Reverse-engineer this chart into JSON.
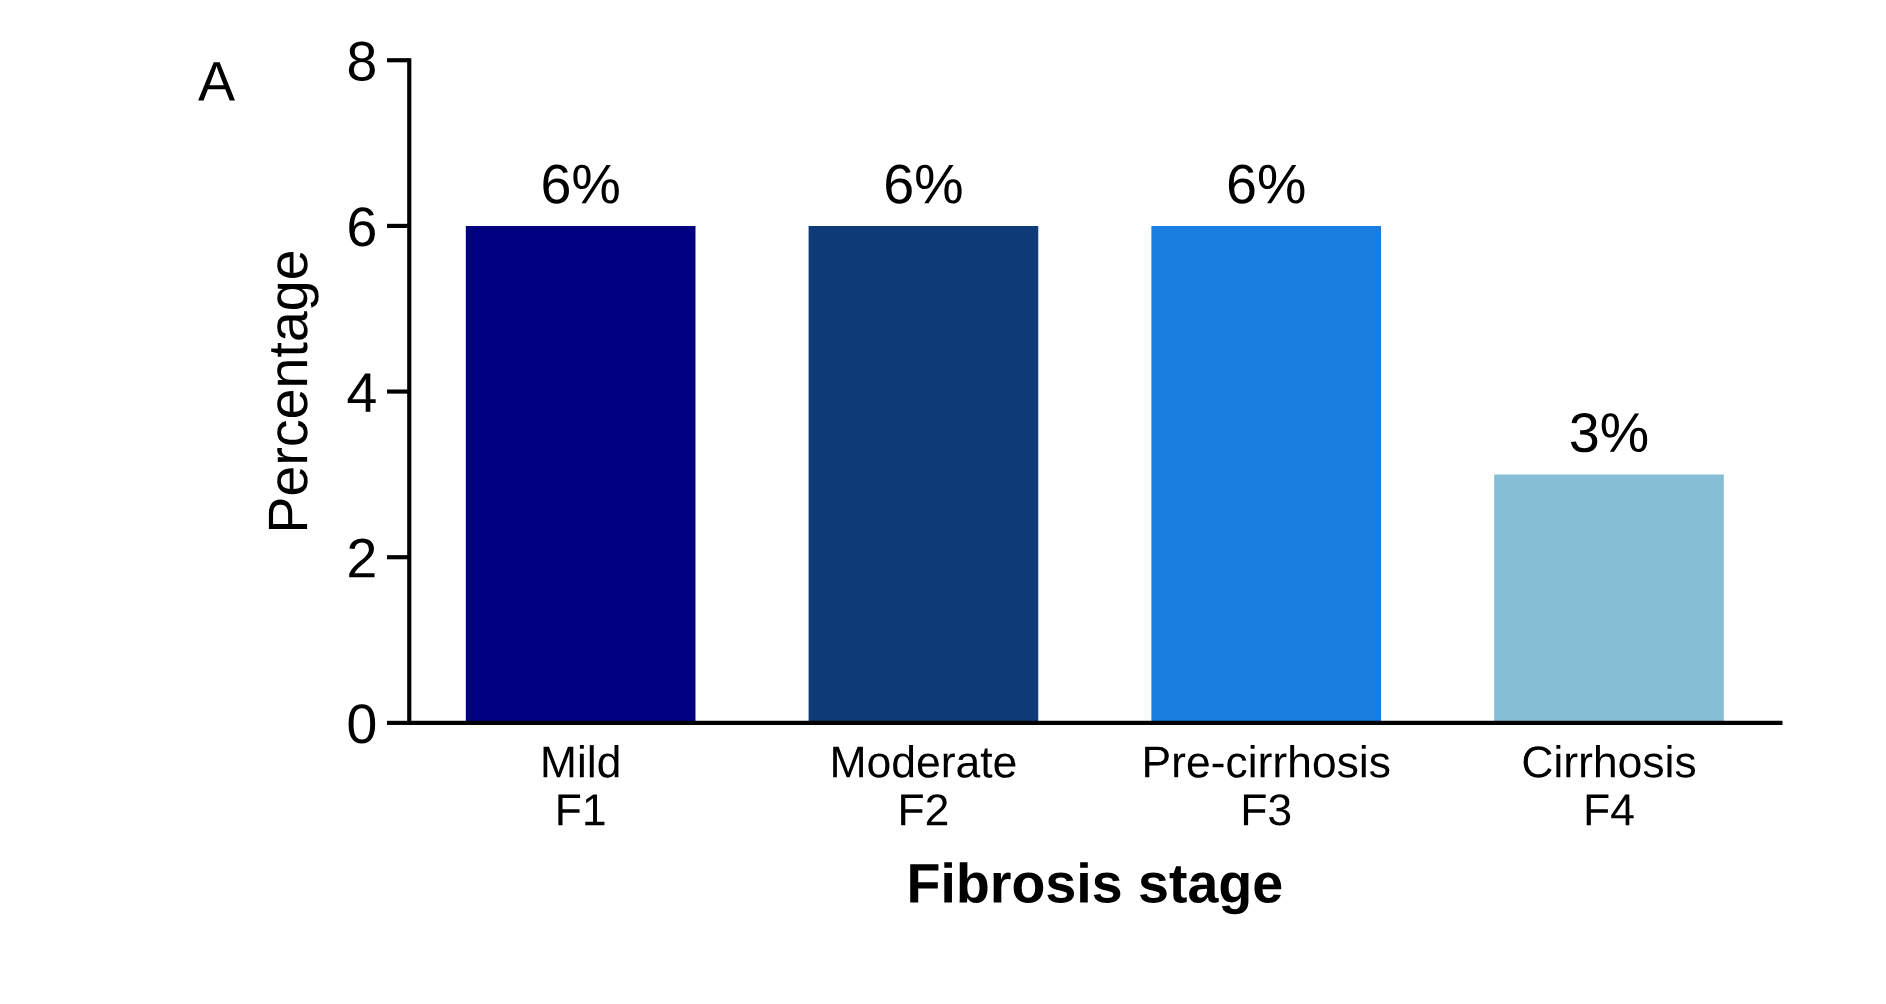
{
  "chart_data": {
    "type": "bar",
    "categories": [
      "Mild\nF1",
      "Moderate\nF2",
      "Pre-cirrhosis\nF3",
      "Cirrhosis\nF4"
    ],
    "values": [
      6,
      6,
      6,
      3
    ],
    "colors": [
      "#000080",
      "#0e3b78",
      "#1a7ee0",
      "#86bfd5"
    ],
    "value_labels": [
      "6%",
      "6%",
      "6%",
      "3%"
    ],
    "xlabel": "Fibrosis stage",
    "ylabel": "Percentage",
    "ylim": [
      0,
      8
    ],
    "yticks": [
      0,
      2,
      4,
      6,
      8
    ],
    "annotations": [
      "A"
    ],
    "grid": false,
    "legend": false
  }
}
